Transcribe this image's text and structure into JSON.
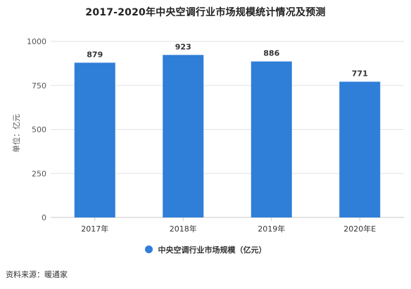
{
  "chart_data": {
    "type": "bar",
    "title": "2017-2020年中央空调行业市场规模统计情况及预测",
    "ylabel": "单位：亿元",
    "xlabel": "",
    "categories": [
      "2017年",
      "2018年",
      "2019年",
      "2020年E"
    ],
    "series": [
      {
        "name": "中央空调行业市场规模（亿元）",
        "values": [
          879,
          923,
          886,
          771
        ]
      }
    ],
    "data_labels": [
      "879",
      "923",
      "886",
      "771"
    ],
    "ylim": [
      0,
      1000
    ],
    "yticks": [
      0,
      250,
      500,
      750,
      1000
    ],
    "ytick_labels": [
      "0",
      "250",
      "500",
      "750",
      "1000"
    ],
    "grid": true,
    "legend_position": "bottom",
    "bar_color": "#2f7ed8"
  },
  "source": "资料来源：暖通家"
}
